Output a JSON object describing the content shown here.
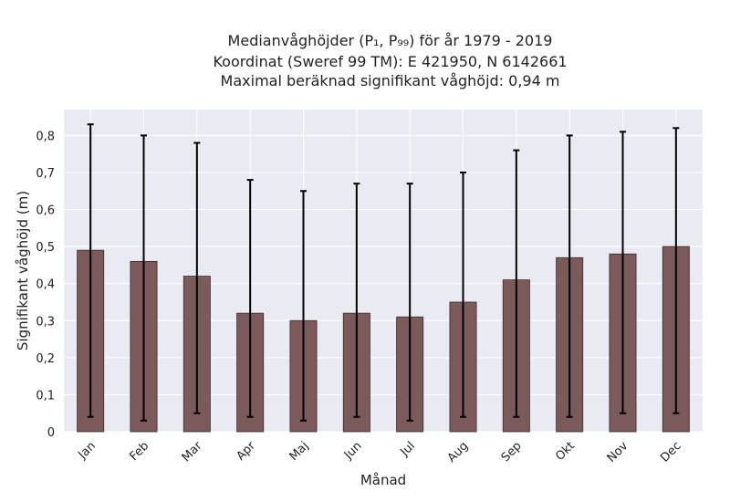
{
  "chart_data": {
    "type": "bar",
    "title_lines": [
      "Medianvåghöjder (P₁, P₉₉) för år 1979 - 2019",
      "Koordinat (Sweref 99 TM): E 421950, N 6142661",
      "Maximal beräknad signifikant våghöjd: 0,94 m"
    ],
    "xlabel": "Månad",
    "ylabel": "Signifikant våghöjd (m)",
    "categories": [
      "Jan",
      "Feb",
      "Mar",
      "Apr",
      "Maj",
      "Jun",
      "Jul",
      "Aug",
      "Sep",
      "Okt",
      "Nov",
      "Dec"
    ],
    "values": [
      0.49,
      0.46,
      0.42,
      0.32,
      0.3,
      0.32,
      0.31,
      0.35,
      0.41,
      0.47,
      0.48,
      0.5
    ],
    "error_low": [
      0.04,
      0.03,
      0.05,
      0.04,
      0.03,
      0.04,
      0.03,
      0.04,
      0.04,
      0.04,
      0.05,
      0.05
    ],
    "error_high": [
      0.83,
      0.8,
      0.78,
      0.68,
      0.65,
      0.67,
      0.67,
      0.7,
      0.76,
      0.8,
      0.81,
      0.82
    ],
    "ylim": [
      0,
      0.87
    ],
    "yticks": [
      0,
      0.1,
      0.2,
      0.3,
      0.4,
      0.5,
      0.6,
      0.7,
      0.8
    ],
    "ytick_labels": [
      "0",
      "0,1",
      "0,2",
      "0,3",
      "0,4",
      "0,5",
      "0,6",
      "0,7",
      "0,8"
    ],
    "grid": true,
    "colors": {
      "bar": "#7b5a5a",
      "bar_edge": "#3a2a2a",
      "error": "#000000",
      "plot_bg": "#eaeaf2",
      "grid": "#ffffff"
    }
  }
}
